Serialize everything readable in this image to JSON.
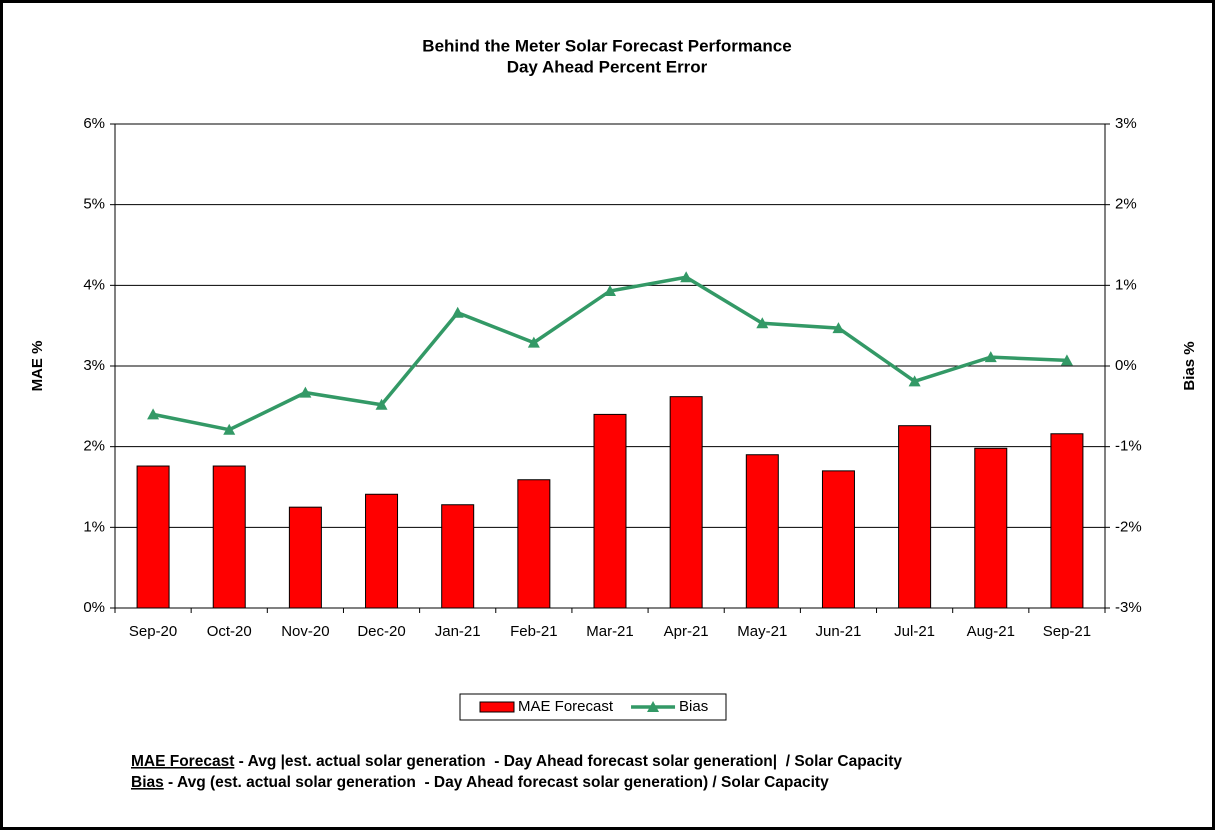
{
  "chart_data": {
    "type": "bar_line",
    "title": "Behind the Meter Solar Forecast Performance",
    "subtitle": "Day Ahead Percent Error",
    "ylabel": "MAE %",
    "y2label": "Bias %",
    "categories": [
      "Sep-20",
      "Oct-20",
      "Nov-20",
      "Dec-20",
      "Jan-21",
      "Feb-21",
      "Mar-21",
      "Apr-21",
      "May-21",
      "Jun-21",
      "Jul-21",
      "Aug-21",
      "Sep-21"
    ],
    "series": [
      {
        "name": "MAE Forecast",
        "type": "bar",
        "color": "#ff0000",
        "values": [
          1.76,
          1.76,
          1.25,
          1.41,
          1.28,
          1.59,
          2.4,
          2.62,
          1.9,
          1.7,
          2.26,
          1.98,
          2.16
        ]
      },
      {
        "name": "Bias",
        "type": "line",
        "axis": "y2",
        "color": "#339966",
        "values": [
          -0.6,
          -0.79,
          -0.33,
          -0.48,
          0.66,
          0.29,
          0.93,
          1.1,
          0.53,
          0.47,
          -0.19,
          0.11,
          0.07
        ]
      }
    ],
    "ylim": [
      0,
      6
    ],
    "yticks": [
      {
        "value": 0,
        "label": "0%"
      },
      {
        "value": 1,
        "label": "1%"
      },
      {
        "value": 2,
        "label": "2%"
      },
      {
        "value": 3,
        "label": "3%"
      },
      {
        "value": 4,
        "label": "4%"
      },
      {
        "value": 5,
        "label": "5%"
      },
      {
        "value": 6,
        "label": "6%"
      }
    ],
    "y2lim": [
      -3,
      3
    ],
    "y2ticks": [
      {
        "value": -3,
        "label": "-3%"
      },
      {
        "value": -2,
        "label": "-2%"
      },
      {
        "value": -1,
        "label": "-1%"
      },
      {
        "value": 0,
        "label": "0%"
      },
      {
        "value": 1,
        "label": "1%"
      },
      {
        "value": 2,
        "label": "2%"
      },
      {
        "value": 3,
        "label": "3%"
      }
    ],
    "grid": true,
    "legend": "bottom",
    "notes": [
      {
        "term": "MAE Forecast",
        "text": " - Avg |est. actual solar generation  - Day Ahead forecast solar generation|  / Solar Capacity"
      },
      {
        "term": "Bias",
        "text": " - Avg (est. actual solar generation  - Day Ahead forecast solar generation) / Solar Capacity"
      }
    ]
  }
}
